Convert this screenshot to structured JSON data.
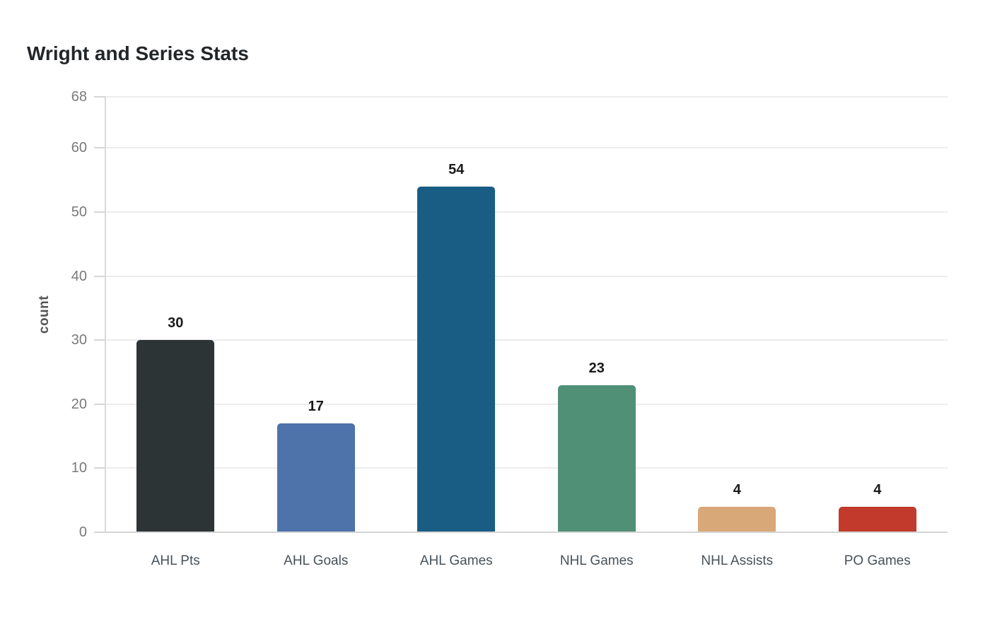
{
  "chart_data": {
    "type": "bar",
    "title": "Wright and Series Stats",
    "xlabel": "",
    "ylabel": "count",
    "categories": [
      "AHL Pts",
      "AHL Goals",
      "AHL Games",
      "NHL Games",
      "NHL Assists",
      "PO Games"
    ],
    "values": [
      30,
      17,
      54,
      23,
      4,
      4
    ],
    "bar_colors": [
      "#2d3436",
      "#4e73ab",
      "#195d85",
      "#4f9077",
      "#d8a878",
      "#c13a2b"
    ],
    "value_labels": [
      "30",
      "17",
      "54",
      "23",
      "4",
      "4"
    ],
    "ylim": [
      0,
      68
    ],
    "yticks": [
      0,
      10,
      20,
      30,
      40,
      50,
      60,
      68
    ],
    "grid": true,
    "legend": false
  },
  "colors": {
    "background": "#ffffff",
    "title_text": "#232629",
    "gridline": "#ececec",
    "zero_line": "#d5d5d5",
    "axis_line": "#d9d9d9",
    "tick_mark": "#d6d6d6",
    "y_tick_label": "#7a7a7a",
    "x_tick_label": "#47525a",
    "y_axis_title": "#565656",
    "value_label": "#1a1a1a"
  }
}
